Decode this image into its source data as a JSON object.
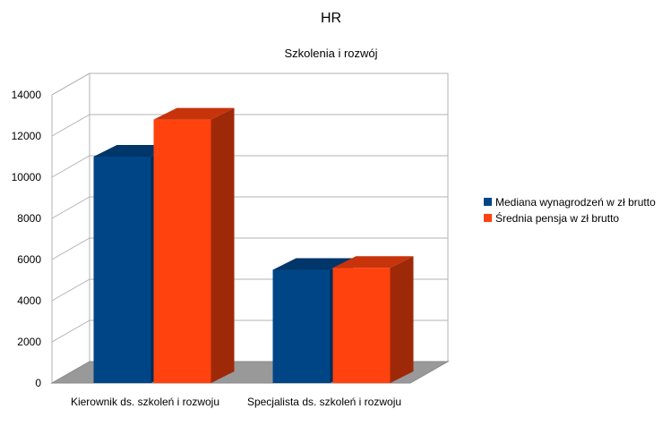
{
  "chart_data": {
    "type": "bar",
    "title": "HR",
    "subtitle": "Szkolenia i rozwój",
    "categories": [
      "Kierownik ds. szkoleń i rozwoju",
      "Specjalista ds. szkoleń i rozwoju"
    ],
    "series": [
      {
        "name": "Mediana wynagrodzeń w zł brutto",
        "values": [
          11000,
          5500
        ],
        "color": "#004586"
      },
      {
        "name": "Średnia pensja w zł brutto",
        "values": [
          12800,
          5600
        ],
        "color": "#ff420e"
      }
    ],
    "ylim": [
      0,
      14000
    ],
    "yticks": [
      0,
      2000,
      4000,
      6000,
      8000,
      10000,
      12000,
      14000
    ],
    "grid": true,
    "legend": "right",
    "three_d": true
  }
}
